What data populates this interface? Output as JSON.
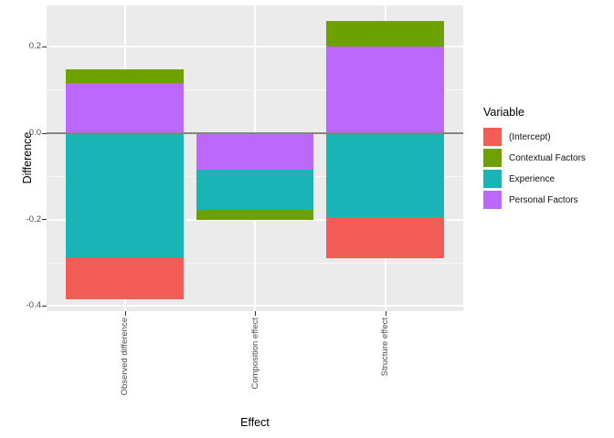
{
  "chart_data": {
    "type": "bar",
    "stacked": true,
    "title": "",
    "xlabel": "Effect",
    "ylabel": "Difference",
    "legend_title": "Variable",
    "legend_position": "right",
    "grid": true,
    "categories": [
      "Observed difference",
      "Composition effect",
      "Structure effect"
    ],
    "series": [
      {
        "name": "(Intercept)",
        "color": "#F25D58",
        "values": [
          -0.096,
          0.0,
          -0.096
        ]
      },
      {
        "name": "Contextual Factors",
        "color": "#6CA100",
        "values": [
          0.032,
          -0.023,
          0.059
        ]
      },
      {
        "name": "Experience",
        "color": "#19B4B6",
        "values": [
          -0.288,
          -0.094,
          -0.194
        ]
      },
      {
        "name": "Personal Factors",
        "color": "#BD68FD",
        "values": [
          0.117,
          -0.084,
          0.201
        ]
      }
    ],
    "stack_order": "reverse-from-zero",
    "bar_width_fraction": 0.9,
    "ylim": [
      -0.412,
      0.296
    ],
    "yticks": [
      -0.4,
      -0.2,
      0.0,
      0.2
    ],
    "ytick_labels": [
      "-0.4",
      "-0.2",
      "0.0",
      "0.2"
    ],
    "yticks_minor": [
      -0.3,
      -0.1,
      0.1
    ],
    "zero_line": 0
  },
  "colors": {
    "panel_background": "#EBEBEB",
    "grid": "#FFFFFF",
    "zero_line": "#848484",
    "tick_text": "#4D4D4D",
    "tick_mark": "#333333",
    "axis_title": "#000000",
    "figure_background": "#FFFFFF"
  }
}
